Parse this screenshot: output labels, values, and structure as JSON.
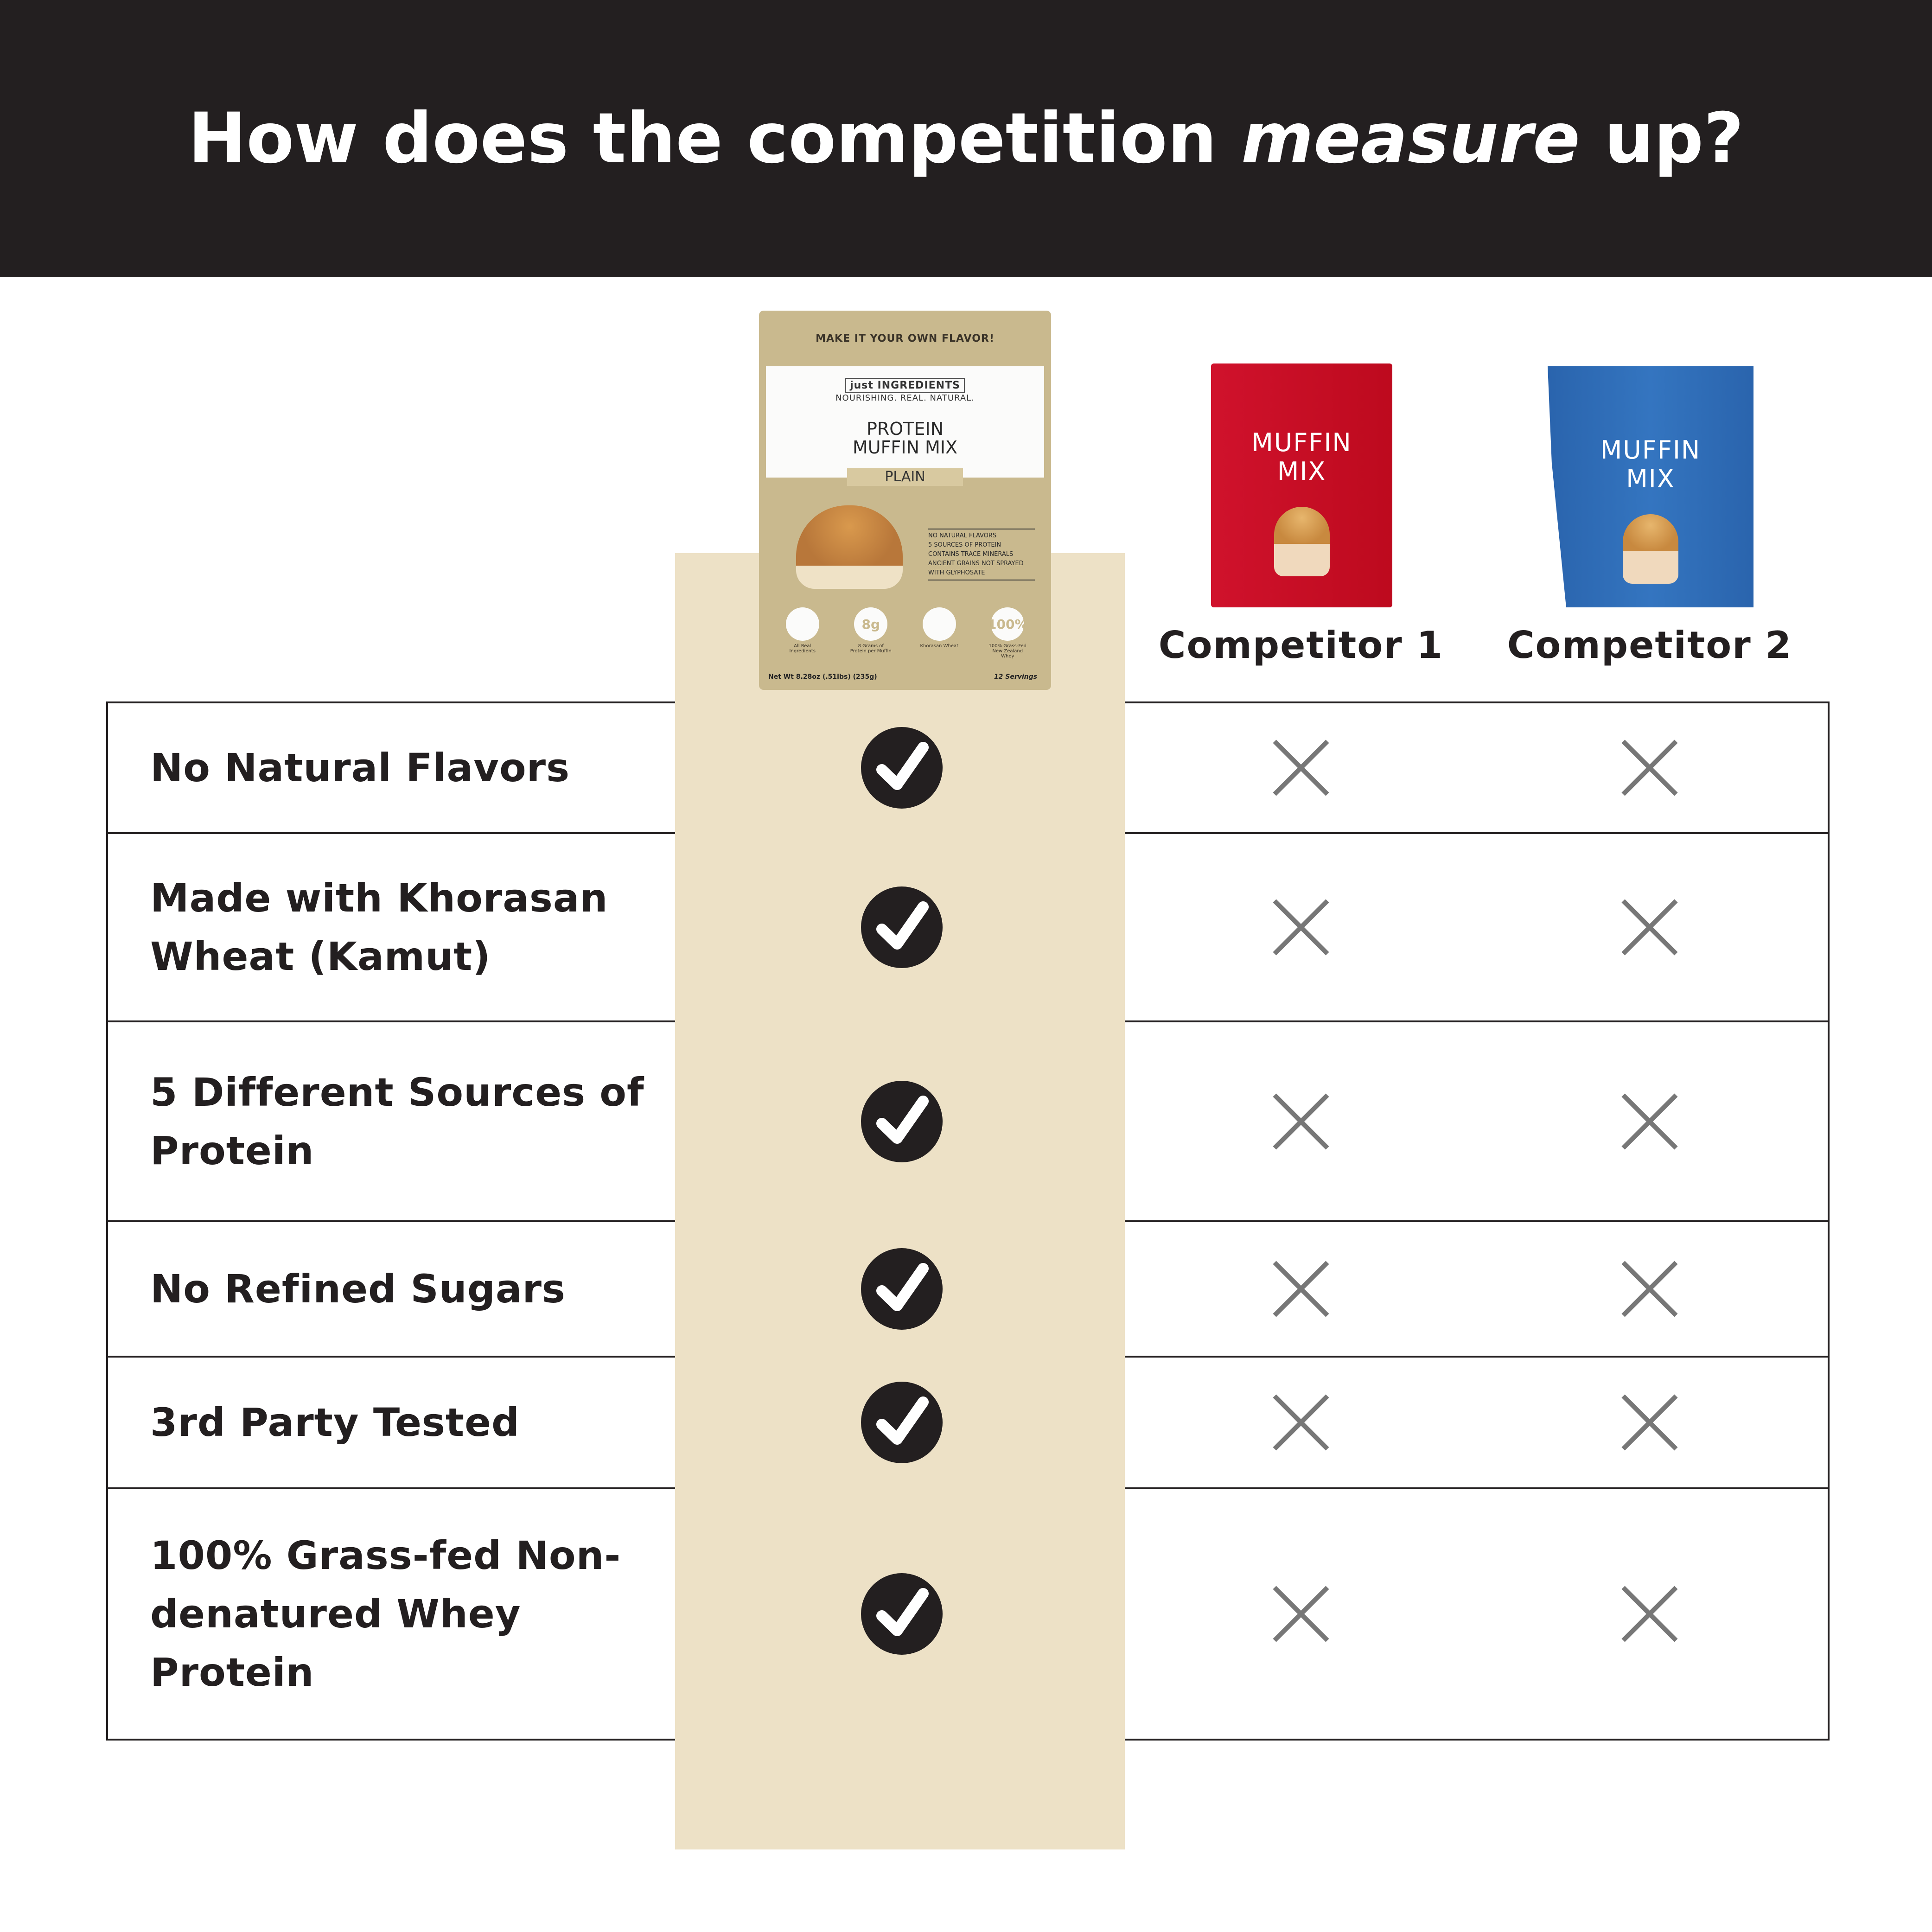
{
  "header": {
    "title_prefix": "How does the competition ",
    "title_emphasis": "measure",
    "title_suffix": " up?"
  },
  "colors": {
    "header_bg": "#231f20",
    "highlight_column": "#ede1c6",
    "competitor1_bag": "#c8102e",
    "competitor2_bag": "#2f6db5",
    "x_mark": "#777777"
  },
  "product": {
    "band": "MAKE IT YOUR OWN FLAVOR!",
    "brand": "just INGREDIENTS",
    "brand_tagline": "NOURISHING. REAL. NATURAL.",
    "name_line1": "PROTEIN",
    "name_line2": "MUFFIN MIX",
    "flavor": "PLAIN",
    "claims": [
      "NO NATURAL FLAVORS",
      "5 SOURCES OF PROTEIN",
      "CONTAINS TRACE MINERALS",
      "ANCIENT GRAINS NOT SPRAYED WITH GLYPHOSATE"
    ],
    "icons": [
      {
        "symbol": "",
        "label": "All Real Ingredients",
        "icon": "mixing-bowl-icon"
      },
      {
        "symbol": "8g",
        "label": "8 Grams of Protein per Muffin"
      },
      {
        "symbol": "",
        "label": "Khorasan Wheat",
        "icon": "wheat-icon"
      },
      {
        "symbol": "100%",
        "label": "100% Grass-Fed New Zealand Whey"
      }
    ],
    "net_wt": "Net Wt 8.28oz (.51lbs) (235g)",
    "servings": "12 Servings"
  },
  "competitors": [
    {
      "label": "Competitor 1",
      "bag_line1": "MUFFIN",
      "bag_line2": "MIX"
    },
    {
      "label": "Competitor 2",
      "bag_line1": "MUFFIN",
      "bag_line2": "MIX"
    }
  ],
  "rows": [
    {
      "label": "No Natural Flavors",
      "product": true,
      "competitor1": false,
      "competitor2": false
    },
    {
      "label": "Made with Khorasan Wheat (Kamut)",
      "product": true,
      "competitor1": false,
      "competitor2": false
    },
    {
      "label": "5 Different Sources of Protein",
      "product": true,
      "competitor1": false,
      "competitor2": false
    },
    {
      "label": "No Refined Sugars",
      "product": true,
      "competitor1": false,
      "competitor2": false
    },
    {
      "label": "3rd Party Tested",
      "product": true,
      "competitor1": false,
      "competitor2": false
    },
    {
      "label": "100% Grass-fed Non-denatured Whey Protein",
      "product": true,
      "competitor1": false,
      "competitor2": false
    }
  ]
}
